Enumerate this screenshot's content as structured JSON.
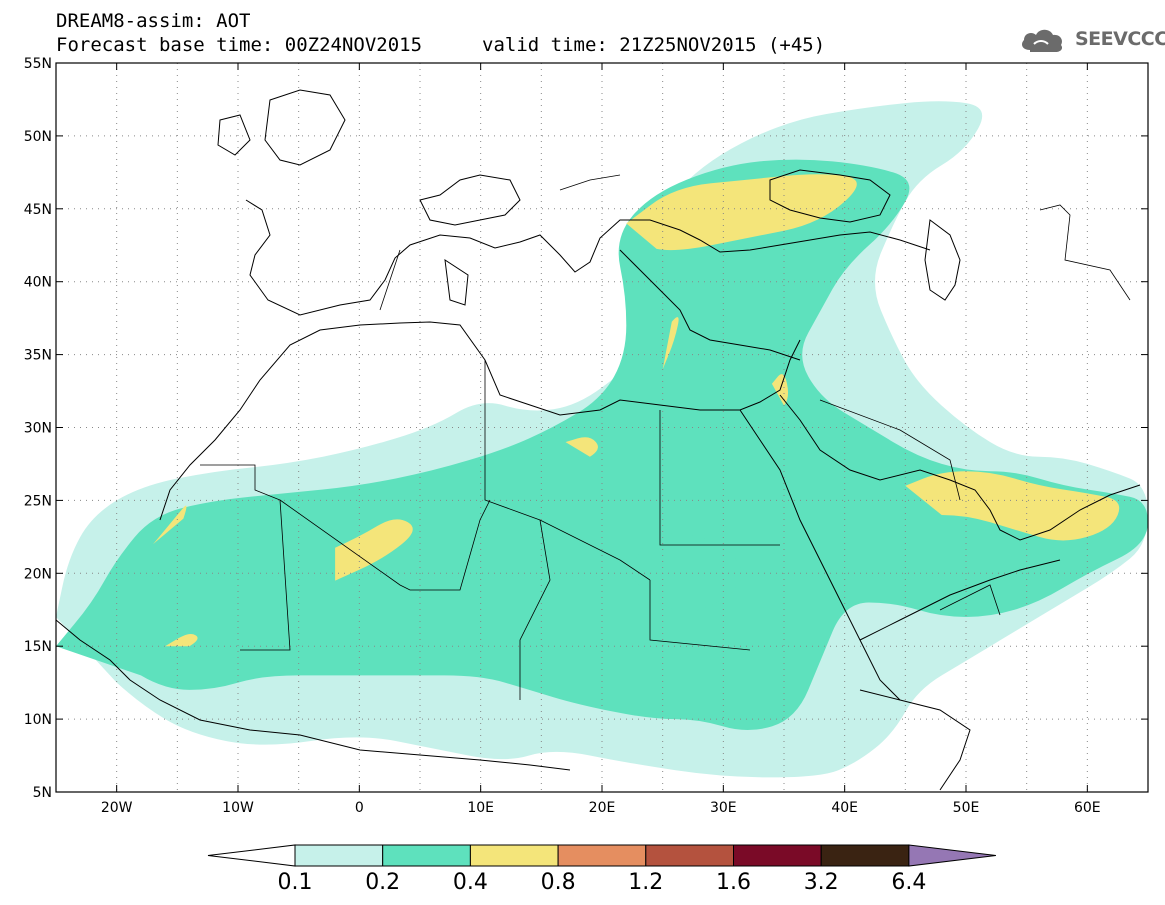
{
  "header": {
    "title": "DREAM8-assim: AOT",
    "base_time": "Forecast base time: 00Z24NOV2015",
    "valid_time": "valid time: 21Z25NOV2015 (+45)",
    "logo_text": "SEEVCCC"
  },
  "map": {
    "projection": "lat-lon",
    "lon_range": [
      -25,
      65
    ],
    "lat_range": [
      5,
      55
    ],
    "lat_ticks": [
      {
        "value": 55,
        "label": "55N"
      },
      {
        "value": 50,
        "label": "50N"
      },
      {
        "value": 45,
        "label": "45N"
      },
      {
        "value": 40,
        "label": "40N"
      },
      {
        "value": 35,
        "label": "35N"
      },
      {
        "value": 30,
        "label": "30N"
      },
      {
        "value": 25,
        "label": "25N"
      },
      {
        "value": 20,
        "label": "20N"
      },
      {
        "value": 15,
        "label": "15N"
      },
      {
        "value": 10,
        "label": "10N"
      },
      {
        "value": 5,
        "label": "5N"
      }
    ],
    "lon_ticks": [
      {
        "value": -20,
        "label": "20W"
      },
      {
        "value": -10,
        "label": "10W"
      },
      {
        "value": 0,
        "label": "0"
      },
      {
        "value": 10,
        "label": "10E"
      },
      {
        "value": 20,
        "label": "20E"
      },
      {
        "value": 30,
        "label": "30E"
      },
      {
        "value": 40,
        "label": "40E"
      },
      {
        "value": 50,
        "label": "50E"
      },
      {
        "value": 60,
        "label": "60E"
      }
    ],
    "grid": "dotted"
  },
  "colorbar": {
    "levels": [
      "0.1",
      "0.2",
      "0.4",
      "0.8",
      "1.2",
      "1.6",
      "3.2",
      "6.4"
    ],
    "colors": [
      "#c6f1ea",
      "#5ee1bd",
      "#f4e57a",
      "#e58e60",
      "#b4523e",
      "#7a0a27",
      "#3a2312",
      "#9577b4"
    ],
    "low_extension_color": "#ffffff",
    "high_extension_color": "#9577b4"
  },
  "aot_fields": {
    "level_0_1": [
      [
        [
          -25,
          17
        ],
        [
          -24,
          21
        ],
        [
          -22,
          24
        ],
        [
          -18,
          26
        ],
        [
          -12,
          27
        ],
        [
          -6,
          27.5
        ],
        [
          0,
          28.5
        ],
        [
          6,
          30
        ],
        [
          10,
          32
        ],
        [
          14,
          31
        ],
        [
          18,
          31.5
        ],
        [
          22,
          34
        ],
        [
          26,
          37
        ],
        [
          26,
          40
        ],
        [
          24,
          44
        ],
        [
          28,
          48
        ],
        [
          35,
          51
        ],
        [
          42,
          52
        ],
        [
          48,
          52.5
        ],
        [
          52,
          52
        ],
        [
          50,
          49
        ],
        [
          46,
          47
        ],
        [
          44,
          44
        ],
        [
          42,
          40
        ],
        [
          44,
          36
        ],
        [
          46,
          33
        ],
        [
          50,
          30
        ],
        [
          54,
          28
        ],
        [
          58,
          28
        ],
        [
          62,
          27
        ],
        [
          65,
          26
        ],
        [
          65,
          22
        ],
        [
          62,
          20
        ],
        [
          58,
          18
        ],
        [
          54,
          16
        ],
        [
          50,
          14
        ],
        [
          46,
          12
        ],
        [
          44,
          9
        ],
        [
          41,
          7
        ],
        [
          38,
          6
        ],
        [
          30,
          6
        ],
        [
          22,
          7
        ],
        [
          16,
          8
        ],
        [
          12,
          7
        ],
        [
          6,
          8
        ],
        [
          0,
          9
        ],
        [
          -8,
          8
        ],
        [
          -14,
          9
        ],
        [
          -18,
          11
        ],
        [
          -22,
          14
        ]
      ]
    ],
    "level_0_2": [
      [
        [
          -25,
          15
        ],
        [
          -22,
          18
        ],
        [
          -20,
          21
        ],
        [
          -17,
          24
        ],
        [
          -12,
          25
        ],
        [
          -6,
          25.5
        ],
        [
          0,
          26
        ],
        [
          6,
          27
        ],
        [
          12,
          28.5
        ],
        [
          16,
          30
        ],
        [
          20,
          32
        ],
        [
          22,
          35
        ],
        [
          22,
          39
        ],
        [
          21,
          43
        ],
        [
          24,
          46
        ],
        [
          30,
          48
        ],
        [
          36,
          48.5
        ],
        [
          42,
          48
        ],
        [
          46,
          47
        ],
        [
          44,
          44
        ],
        [
          40,
          41
        ],
        [
          38,
          38
        ],
        [
          36,
          35
        ],
        [
          38,
          32
        ],
        [
          42,
          30
        ],
        [
          46,
          28
        ],
        [
          50,
          27
        ],
        [
          54,
          27
        ],
        [
          58,
          26
        ],
        [
          62,
          25.5
        ],
        [
          65,
          25
        ],
        [
          65,
          22
        ],
        [
          60,
          20
        ],
        [
          56,
          18
        ],
        [
          52,
          17
        ],
        [
          48,
          17
        ],
        [
          44,
          18
        ],
        [
          40,
          18
        ],
        [
          38,
          14
        ],
        [
          36,
          10
        ],
        [
          32,
          9
        ],
        [
          28,
          10
        ],
        [
          24,
          10
        ],
        [
          18,
          11
        ],
        [
          14,
          12
        ],
        [
          10,
          13
        ],
        [
          4,
          13
        ],
        [
          -2,
          13
        ],
        [
          -8,
          13
        ],
        [
          -12,
          12
        ],
        [
          -16,
          12
        ],
        [
          -20,
          14
        ]
      ],
      [
        [
          22,
          20
        ],
        [
          26,
          17
        ],
        [
          30,
          18
        ],
        [
          32,
          20
        ],
        [
          30,
          22
        ],
        [
          26,
          23
        ],
        [
          22,
          22
        ]
      ]
    ],
    "level_0_4": [
      [
        [
          -2,
          19.5
        ],
        [
          2,
          21
        ],
        [
          5,
          23
        ],
        [
          3,
          24
        ],
        [
          0,
          22.5
        ],
        [
          -4,
          21
        ]
      ],
      [
        [
          -17,
          22
        ],
        [
          -15,
          24
        ],
        [
          -14,
          25
        ],
        [
          -15,
          22.5
        ]
      ],
      [
        [
          -16,
          15
        ],
        [
          -14,
          16
        ],
        [
          -13,
          15.5
        ],
        [
          -15,
          14.5
        ]
      ],
      [
        [
          17,
          29
        ],
        [
          19,
          29.5
        ],
        [
          20,
          28.5
        ],
        [
          18,
          27.5
        ]
      ],
      [
        [
          25,
          34
        ],
        [
          26,
          36
        ],
        [
          26.5,
          38
        ],
        [
          25,
          36.5
        ]
      ],
      [
        [
          34,
          33
        ],
        [
          35,
          34
        ],
        [
          35.5,
          32
        ],
        [
          34.5,
          31
        ]
      ],
      [
        [
          22,
          44
        ],
        [
          26,
          46.5
        ],
        [
          32,
          47
        ],
        [
          38,
          47.5
        ],
        [
          42,
          47
        ],
        [
          38,
          44
        ],
        [
          32,
          43
        ],
        [
          26,
          42
        ],
        [
          23,
          42.5
        ]
      ],
      [
        [
          45,
          26
        ],
        [
          48,
          27
        ],
        [
          52,
          27
        ],
        [
          56,
          26
        ],
        [
          60,
          25.5
        ],
        [
          63,
          25
        ],
        [
          62,
          23
        ],
        [
          58,
          22
        ],
        [
          54,
          23
        ],
        [
          50,
          24
        ],
        [
          46,
          24
        ]
      ]
    ]
  }
}
